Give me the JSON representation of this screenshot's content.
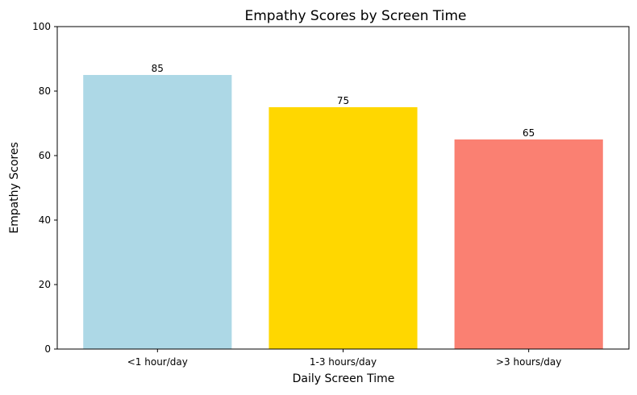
{
  "chart_data": {
    "type": "bar",
    "title": "Empathy Scores by Screen Time",
    "xlabel": "Daily Screen Time",
    "ylabel": "Empathy Scores",
    "categories": [
      "<1 hour/day",
      "1-3 hours/day",
      ">3 hours/day"
    ],
    "values": [
      85,
      75,
      65
    ],
    "data_labels": [
      "85",
      "75",
      "65"
    ],
    "colors": [
      "#add8e6",
      "#ffd700",
      "#fa8072"
    ],
    "ylim": [
      0,
      100
    ],
    "yticks": [
      0,
      20,
      40,
      60,
      80,
      100
    ],
    "ytick_labels": [
      "0",
      "20",
      "40",
      "60",
      "80",
      "100"
    ],
    "grid": false,
    "legend": "none"
  }
}
